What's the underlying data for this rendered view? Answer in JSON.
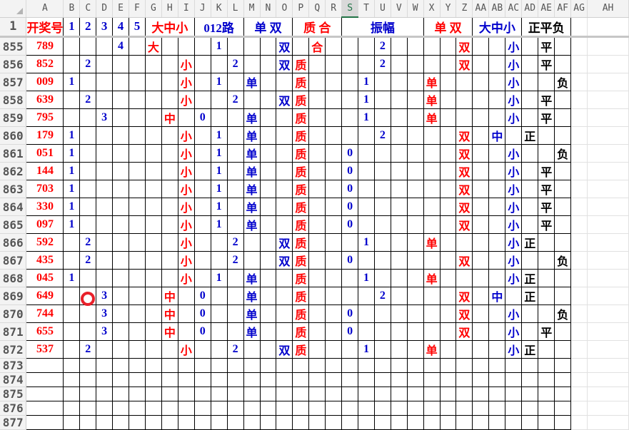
{
  "sheet": {
    "selected_column": "S",
    "columns": [
      "A",
      "B",
      "C",
      "D",
      "E",
      "F",
      "G",
      "H",
      "I",
      "J",
      "K",
      "L",
      "M",
      "N",
      "O",
      "P",
      "Q",
      "R",
      "S",
      "T",
      "U",
      "V",
      "W",
      "X",
      "Y",
      "Z",
      "AA",
      "AB",
      "AC",
      "AD",
      "AE",
      "AF",
      "AG",
      "AH"
    ],
    "colors": {
      "red": "#ff0000",
      "blue": "#0000cc",
      "black": "#000000",
      "selection": "#217346",
      "marker": "#e8202a"
    },
    "header_row": {
      "row_number": "1",
      "cells": [
        {
          "col": "A",
          "span": 1,
          "text": "开奖号",
          "color": "red"
        },
        {
          "col": "B",
          "span": 1,
          "text": "1",
          "color": "blue"
        },
        {
          "col": "C",
          "span": 1,
          "text": "2",
          "color": "blue"
        },
        {
          "col": "D",
          "span": 1,
          "text": "3",
          "color": "blue"
        },
        {
          "col": "E",
          "span": 1,
          "text": "4",
          "color": "blue"
        },
        {
          "col": "F",
          "span": 1,
          "text": "5",
          "color": "blue"
        },
        {
          "col": "G",
          "span": 3,
          "text": "大中小",
          "color": "red"
        },
        {
          "col": "J",
          "span": 3,
          "text": "012路",
          "color": "blue"
        },
        {
          "col": "M",
          "span": 3,
          "text": "单 双",
          "color": "blue"
        },
        {
          "col": "P",
          "span": 3,
          "text": "质 合",
          "color": "red"
        },
        {
          "col": "S",
          "span": 5,
          "text": "振幅",
          "color": "blue"
        },
        {
          "col": "X",
          "span": 3,
          "text": "单 双",
          "color": "red"
        },
        {
          "col": "AA",
          "span": 3,
          "text": "大中小",
          "color": "blue"
        },
        {
          "col": "AD",
          "span": 3,
          "text": "正平负",
          "color": "black"
        }
      ]
    },
    "column_colors": {
      "A": "red",
      "B": "blue",
      "C": "blue",
      "D": "blue",
      "E": "blue",
      "F": "blue",
      "G": "red",
      "H": "red",
      "I": "red",
      "J": "blue",
      "K": "blue",
      "L": "blue",
      "M": "blue",
      "N": "blue",
      "O": "blue",
      "P": "red",
      "Q": "red",
      "R": "red",
      "S": "blue",
      "T": "blue",
      "U": "blue",
      "V": "blue",
      "W": "blue",
      "X": "red",
      "Y": "red",
      "Z": "red",
      "AA": "blue",
      "AB": "blue",
      "AC": "blue",
      "AD": "black",
      "AE": "black",
      "AF": "black"
    },
    "rows": [
      {
        "row": "855",
        "cells": {
          "A": "789",
          "E": "4",
          "G": "大",
          "K": "1",
          "O": "双",
          "Q": "合",
          "U": "2",
          "Z": "双",
          "AC": "小",
          "AE": "平"
        }
      },
      {
        "row": "856",
        "cells": {
          "A": "852",
          "C": "2",
          "I": "小",
          "L": "2",
          "O": "双",
          "P": "质",
          "U": "2",
          "Z": "双",
          "AC": "小",
          "AE": "平"
        }
      },
      {
        "row": "857",
        "cells": {
          "A": "009",
          "B": "1",
          "I": "小",
          "K": "1",
          "M": "单",
          "P": "质",
          "T": "1",
          "X": "单",
          "AC": "小",
          "AF": "负"
        }
      },
      {
        "row": "858",
        "cells": {
          "A": "639",
          "C": "2",
          "I": "小",
          "L": "2",
          "O": "双",
          "P": "质",
          "T": "1",
          "X": "单",
          "AC": "小",
          "AE": "平"
        }
      },
      {
        "row": "859",
        "cells": {
          "A": "795",
          "D": "3",
          "H": "中",
          "J": "0",
          "M": "单",
          "P": "质",
          "T": "1",
          "X": "单",
          "AC": "小",
          "AE": "平"
        }
      },
      {
        "row": "860",
        "cells": {
          "A": "179",
          "B": "1",
          "I": "小",
          "K": "1",
          "M": "单",
          "P": "质",
          "U": "2",
          "Z": "双",
          "AB": "中",
          "AD": "正"
        }
      },
      {
        "row": "861",
        "cells": {
          "A": "051",
          "B": "1",
          "I": "小",
          "K": "1",
          "M": "单",
          "P": "质",
          "S": "0",
          "Z": "双",
          "AC": "小",
          "AF": "负"
        }
      },
      {
        "row": "862",
        "cells": {
          "A": "144",
          "B": "1",
          "I": "小",
          "K": "1",
          "M": "单",
          "P": "质",
          "S": "0",
          "Z": "双",
          "AC": "小",
          "AE": "平"
        }
      },
      {
        "row": "863",
        "cells": {
          "A": "703",
          "B": "1",
          "I": "小",
          "K": "1",
          "M": "单",
          "P": "质",
          "S": "0",
          "Z": "双",
          "AC": "小",
          "AE": "平"
        }
      },
      {
        "row": "864",
        "cells": {
          "A": "330",
          "B": "1",
          "I": "小",
          "K": "1",
          "M": "单",
          "P": "质",
          "S": "0",
          "Z": "双",
          "AC": "小",
          "AE": "平"
        }
      },
      {
        "row": "865",
        "cells": {
          "A": "097",
          "B": "1",
          "I": "小",
          "K": "1",
          "M": "单",
          "P": "质",
          "S": "0",
          "Z": "双",
          "AC": "小",
          "AE": "平"
        }
      },
      {
        "row": "866",
        "cells": {
          "A": "592",
          "C": "2",
          "I": "小",
          "L": "2",
          "O": "双",
          "P": "质",
          "T": "1",
          "X": "单",
          "AC": "小",
          "AD": "正"
        }
      },
      {
        "row": "867",
        "cells": {
          "A": "435",
          "C": "2",
          "I": "小",
          "L": "2",
          "O": "双",
          "P": "质",
          "S": "0",
          "Z": "双",
          "AC": "小",
          "AF": "负"
        }
      },
      {
        "row": "868",
        "cells": {
          "A": "045",
          "B": "1",
          "I": "小",
          "K": "1",
          "M": "单",
          "P": "质",
          "T": "1",
          "X": "单",
          "AC": "小",
          "AD": "正"
        }
      },
      {
        "row": "869",
        "cells": {
          "A": "649",
          "D": "3",
          "H": "中",
          "J": "0",
          "M": "单",
          "P": "质",
          "U": "2",
          "Z": "双",
          "AB": "中",
          "AD": "正"
        }
      },
      {
        "row": "870",
        "cells": {
          "A": "744",
          "D": "3",
          "H": "中",
          "J": "0",
          "M": "单",
          "P": "质",
          "S": "0",
          "Z": "双",
          "AC": "小",
          "AF": "负"
        }
      },
      {
        "row": "871",
        "cells": {
          "A": "655",
          "D": "3",
          "H": "中",
          "J": "0",
          "M": "单",
          "P": "质",
          "S": "0",
          "Z": "双",
          "AC": "小",
          "AE": "平"
        }
      },
      {
        "row": "872",
        "cells": {
          "A": "537",
          "C": "2",
          "I": "小",
          "L": "2",
          "O": "双",
          "P": "质",
          "T": "1",
          "X": "单",
          "AC": "小",
          "AD": "正"
        }
      },
      {
        "row": "873",
        "cells": {}
      },
      {
        "row": "874",
        "cells": {}
      },
      {
        "row": "875",
        "cells": {}
      },
      {
        "row": "876",
        "cells": {}
      },
      {
        "row": "877",
        "cells": {}
      }
    ]
  }
}
